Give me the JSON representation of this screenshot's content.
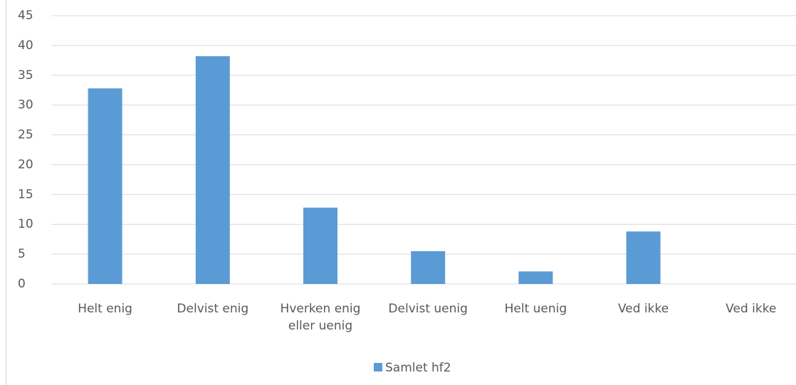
{
  "chart_data": {
    "type": "bar",
    "categories": [
      "Helt enig",
      "Delvist enig",
      "Hverken enig eller uenig",
      "Delvist uenig",
      "Helt uenig",
      "Ved ikke",
      "Ved ikke"
    ],
    "series": [
      {
        "name": "Samlet hf2",
        "color": "#5b9bd5",
        "values": [
          32.8,
          38.2,
          12.8,
          5.5,
          2.1,
          8.8,
          0
        ]
      }
    ],
    "ylim": [
      0,
      45
    ],
    "yticks": [
      0,
      5,
      10,
      15,
      20,
      25,
      30,
      35,
      40,
      45
    ],
    "grid": true,
    "legend": "bottom"
  }
}
